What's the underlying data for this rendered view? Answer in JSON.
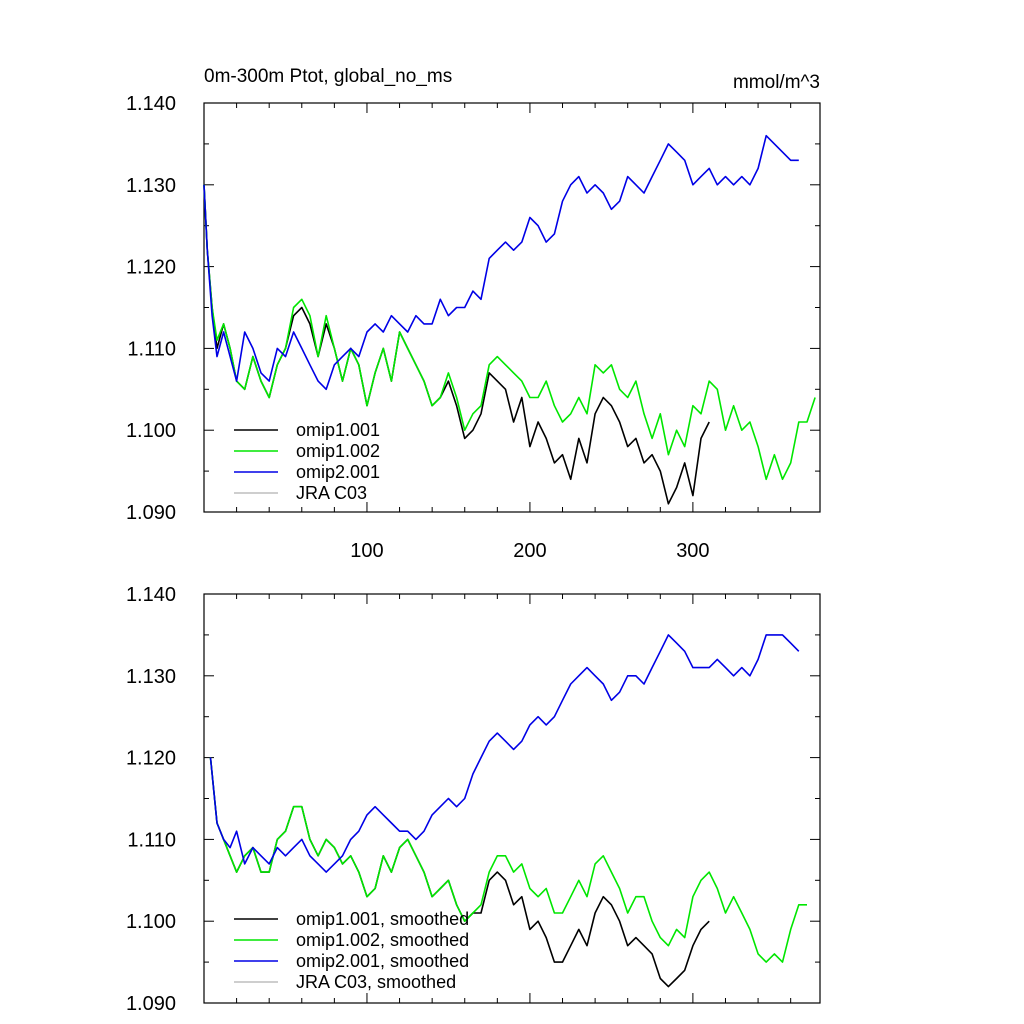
{
  "chart_data": [
    {
      "type": "line",
      "title": "0m-300m Ptot, global_no_ms",
      "units": "mmol/m^3",
      "xlim": [
        0,
        378
      ],
      "ylim": [
        1.09,
        1.14
      ],
      "x_ticks": [
        100,
        200,
        300
      ],
      "y_ticks": [
        "1.090",
        "1.100",
        "1.110",
        "1.120",
        "1.130",
        "1.140"
      ],
      "legend_position": "bottom-left",
      "grid": false,
      "series": [
        {
          "name": "omip1.001",
          "color": "#000000",
          "x": [
            0,
            2,
            5,
            8,
            12,
            16,
            20,
            25,
            30,
            35,
            40,
            45,
            50,
            55,
            60,
            65,
            70,
            75,
            80,
            85,
            90,
            95,
            100,
            105,
            110,
            115,
            120,
            125,
            130,
            135,
            140,
            145,
            150,
            155,
            160,
            165,
            170,
            175,
            180,
            185,
            190,
            195,
            200,
            205,
            210,
            215,
            220,
            225,
            230,
            235,
            240,
            245,
            250,
            255,
            260,
            265,
            270,
            275,
            280,
            285,
            290,
            295,
            300,
            305,
            310
          ],
          "values": [
            1.13,
            1.122,
            1.115,
            1.11,
            1.113,
            1.11,
            1.106,
            1.105,
            1.109,
            1.106,
            1.104,
            1.108,
            1.11,
            1.114,
            1.115,
            1.113,
            1.109,
            1.113,
            1.11,
            1.106,
            1.11,
            1.108,
            1.103,
            1.107,
            1.11,
            1.106,
            1.112,
            1.11,
            1.108,
            1.106,
            1.103,
            1.104,
            1.106,
            1.103,
            1.099,
            1.1,
            1.102,
            1.107,
            1.106,
            1.105,
            1.101,
            1.104,
            1.098,
            1.101,
            1.099,
            1.096,
            1.097,
            1.094,
            1.099,
            1.096,
            1.102,
            1.104,
            1.103,
            1.101,
            1.098,
            1.099,
            1.096,
            1.097,
            1.095,
            1.091,
            1.093,
            1.096,
            1.092,
            1.099,
            1.101
          ]
        },
        {
          "name": "omip1.002",
          "color": "#00e600",
          "x": [
            0,
            2,
            5,
            8,
            12,
            16,
            20,
            25,
            30,
            35,
            40,
            45,
            50,
            55,
            60,
            65,
            70,
            75,
            80,
            85,
            90,
            95,
            100,
            105,
            110,
            115,
            120,
            125,
            130,
            135,
            140,
            145,
            150,
            155,
            160,
            165,
            170,
            175,
            180,
            185,
            190,
            195,
            200,
            205,
            210,
            215,
            220,
            225,
            230,
            235,
            240,
            245,
            250,
            255,
            260,
            265,
            270,
            275,
            280,
            285,
            290,
            295,
            300,
            305,
            310,
            315,
            320,
            325,
            330,
            335,
            340,
            345,
            350,
            355,
            360,
            365,
            370,
            375
          ],
          "values": [
            1.13,
            1.122,
            1.115,
            1.111,
            1.113,
            1.11,
            1.106,
            1.105,
            1.109,
            1.106,
            1.104,
            1.108,
            1.11,
            1.115,
            1.116,
            1.114,
            1.109,
            1.114,
            1.11,
            1.106,
            1.11,
            1.108,
            1.103,
            1.107,
            1.11,
            1.106,
            1.112,
            1.11,
            1.108,
            1.106,
            1.103,
            1.104,
            1.107,
            1.104,
            1.1,
            1.102,
            1.103,
            1.108,
            1.109,
            1.108,
            1.107,
            1.106,
            1.104,
            1.104,
            1.106,
            1.103,
            1.101,
            1.102,
            1.104,
            1.102,
            1.108,
            1.107,
            1.108,
            1.105,
            1.104,
            1.106,
            1.102,
            1.099,
            1.102,
            1.097,
            1.1,
            1.098,
            1.103,
            1.102,
            1.106,
            1.105,
            1.1,
            1.103,
            1.1,
            1.101,
            1.098,
            1.094,
            1.097,
            1.094,
            1.096,
            1.101,
            1.101,
            1.104
          ]
        },
        {
          "name": "omip2.001",
          "color": "#0000e6",
          "x": [
            0,
            2,
            5,
            8,
            12,
            16,
            20,
            25,
            30,
            35,
            40,
            45,
            50,
            55,
            60,
            65,
            70,
            75,
            80,
            85,
            90,
            95,
            100,
            105,
            110,
            115,
            120,
            125,
            130,
            135,
            140,
            145,
            150,
            155,
            160,
            165,
            170,
            175,
            180,
            185,
            190,
            195,
            200,
            205,
            210,
            215,
            220,
            225,
            230,
            235,
            240,
            245,
            250,
            255,
            260,
            265,
            270,
            275,
            280,
            285,
            290,
            295,
            300,
            305,
            310,
            315,
            320,
            325,
            330,
            335,
            340,
            345,
            350,
            355,
            360,
            365
          ],
          "values": [
            1.13,
            1.122,
            1.114,
            1.109,
            1.112,
            1.109,
            1.106,
            1.112,
            1.11,
            1.107,
            1.106,
            1.11,
            1.109,
            1.112,
            1.11,
            1.108,
            1.106,
            1.105,
            1.108,
            1.109,
            1.11,
            1.109,
            1.112,
            1.113,
            1.112,
            1.114,
            1.113,
            1.112,
            1.114,
            1.113,
            1.113,
            1.116,
            1.114,
            1.115,
            1.115,
            1.117,
            1.116,
            1.121,
            1.122,
            1.123,
            1.122,
            1.123,
            1.126,
            1.125,
            1.123,
            1.124,
            1.128,
            1.13,
            1.131,
            1.129,
            1.13,
            1.129,
            1.127,
            1.128,
            1.131,
            1.13,
            1.129,
            1.131,
            1.133,
            1.135,
            1.134,
            1.133,
            1.13,
            1.131,
            1.132,
            1.13,
            1.131,
            1.13,
            1.131,
            1.13,
            1.132,
            1.136,
            1.135,
            1.134,
            1.133,
            1.133
          ]
        },
        {
          "name": "JRA C03",
          "color": "#bdbdbd",
          "x": [],
          "values": []
        }
      ]
    },
    {
      "type": "line",
      "xlim": [
        0,
        378
      ],
      "ylim": [
        1.09,
        1.14
      ],
      "y_ticks": [
        "1.090",
        "1.100",
        "1.110",
        "1.120",
        "1.130",
        "1.140"
      ],
      "legend_position": "bottom-left",
      "grid": false,
      "series": [
        {
          "name": "omip1.001, smoothed",
          "color": "#000000",
          "x": [
            4,
            8,
            12,
            16,
            20,
            25,
            30,
            35,
            40,
            45,
            50,
            55,
            60,
            65,
            70,
            75,
            80,
            85,
            90,
            95,
            100,
            105,
            110,
            115,
            120,
            125,
            130,
            135,
            140,
            145,
            150,
            155,
            160,
            165,
            170,
            175,
            180,
            185,
            190,
            195,
            200,
            205,
            210,
            215,
            220,
            225,
            230,
            235,
            240,
            245,
            250,
            255,
            260,
            265,
            270,
            275,
            280,
            285,
            290,
            295,
            300,
            305,
            310
          ],
          "values": [
            1.12,
            1.112,
            1.11,
            1.108,
            1.106,
            1.108,
            1.109,
            1.106,
            1.106,
            1.11,
            1.111,
            1.114,
            1.114,
            1.11,
            1.108,
            1.11,
            1.109,
            1.107,
            1.108,
            1.106,
            1.103,
            1.104,
            1.108,
            1.106,
            1.109,
            1.11,
            1.108,
            1.106,
            1.103,
            1.104,
            1.105,
            1.102,
            1.1,
            1.101,
            1.101,
            1.105,
            1.106,
            1.105,
            1.102,
            1.103,
            1.099,
            1.1,
            1.098,
            1.095,
            1.095,
            1.097,
            1.099,
            1.097,
            1.101,
            1.103,
            1.102,
            1.1,
            1.097,
            1.098,
            1.097,
            1.096,
            1.093,
            1.092,
            1.093,
            1.094,
            1.097,
            1.099,
            1.1
          ]
        },
        {
          "name": "omip1.002, smoothed",
          "color": "#00e600",
          "x": [
            4,
            8,
            12,
            16,
            20,
            25,
            30,
            35,
            40,
            45,
            50,
            55,
            60,
            65,
            70,
            75,
            80,
            85,
            90,
            95,
            100,
            105,
            110,
            115,
            120,
            125,
            130,
            135,
            140,
            145,
            150,
            155,
            160,
            165,
            170,
            175,
            180,
            185,
            190,
            195,
            200,
            205,
            210,
            215,
            220,
            225,
            230,
            235,
            240,
            245,
            250,
            255,
            260,
            265,
            270,
            275,
            280,
            285,
            290,
            295,
            300,
            305,
            310,
            315,
            320,
            325,
            330,
            335,
            340,
            345,
            350,
            355,
            360,
            365,
            370
          ],
          "values": [
            1.12,
            1.112,
            1.11,
            1.108,
            1.106,
            1.108,
            1.109,
            1.106,
            1.106,
            1.11,
            1.111,
            1.114,
            1.114,
            1.11,
            1.108,
            1.11,
            1.109,
            1.107,
            1.108,
            1.106,
            1.103,
            1.104,
            1.108,
            1.106,
            1.109,
            1.11,
            1.108,
            1.106,
            1.103,
            1.104,
            1.105,
            1.102,
            1.1,
            1.101,
            1.102,
            1.106,
            1.108,
            1.108,
            1.106,
            1.107,
            1.104,
            1.103,
            1.104,
            1.101,
            1.101,
            1.103,
            1.105,
            1.103,
            1.107,
            1.108,
            1.106,
            1.104,
            1.101,
            1.103,
            1.103,
            1.1,
            1.098,
            1.097,
            1.099,
            1.098,
            1.103,
            1.105,
            1.106,
            1.104,
            1.101,
            1.103,
            1.101,
            1.099,
            1.096,
            1.095,
            1.096,
            1.095,
            1.099,
            1.102,
            1.102
          ]
        },
        {
          "name": "omip2.001, smoothed",
          "color": "#0000e6",
          "x": [
            4,
            8,
            12,
            16,
            20,
            25,
            30,
            35,
            40,
            45,
            50,
            55,
            60,
            65,
            70,
            75,
            80,
            85,
            90,
            95,
            100,
            105,
            110,
            115,
            120,
            125,
            130,
            135,
            140,
            145,
            150,
            155,
            160,
            165,
            170,
            175,
            180,
            185,
            190,
            195,
            200,
            205,
            210,
            215,
            220,
            225,
            230,
            235,
            240,
            245,
            250,
            255,
            260,
            265,
            270,
            275,
            280,
            285,
            290,
            295,
            300,
            305,
            310,
            315,
            320,
            325,
            330,
            335,
            340,
            345,
            350,
            355,
            360,
            365
          ],
          "values": [
            1.12,
            1.112,
            1.11,
            1.109,
            1.111,
            1.107,
            1.109,
            1.108,
            1.107,
            1.109,
            1.108,
            1.109,
            1.11,
            1.108,
            1.107,
            1.106,
            1.107,
            1.108,
            1.11,
            1.111,
            1.113,
            1.114,
            1.113,
            1.112,
            1.111,
            1.111,
            1.11,
            1.111,
            1.113,
            1.114,
            1.115,
            1.114,
            1.115,
            1.118,
            1.12,
            1.122,
            1.123,
            1.122,
            1.121,
            1.122,
            1.124,
            1.125,
            1.124,
            1.125,
            1.127,
            1.129,
            1.13,
            1.131,
            1.13,
            1.129,
            1.127,
            1.128,
            1.13,
            1.13,
            1.129,
            1.131,
            1.133,
            1.135,
            1.134,
            1.133,
            1.131,
            1.131,
            1.131,
            1.132,
            1.131,
            1.13,
            1.131,
            1.13,
            1.132,
            1.135,
            1.135,
            1.135,
            1.134,
            1.133
          ]
        },
        {
          "name": "JRA C03, smoothed",
          "color": "#bdbdbd",
          "x": [],
          "values": []
        }
      ]
    }
  ]
}
